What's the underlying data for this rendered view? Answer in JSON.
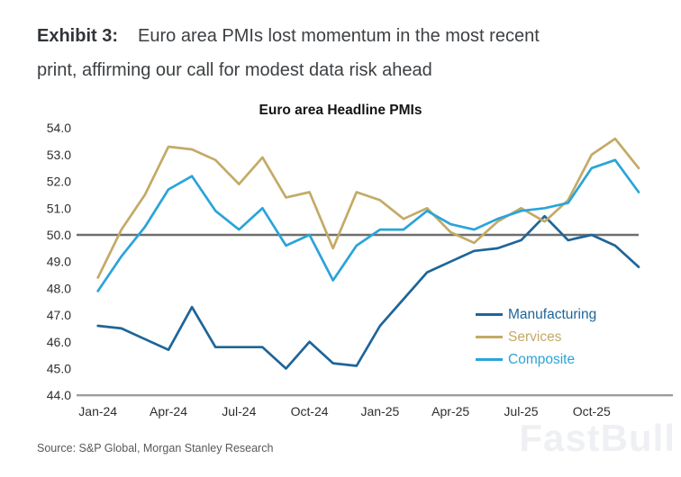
{
  "heading": {
    "exhibit_label": "Exhibit 3:",
    "line1": "Euro area PMIs lost momentum in the most recent",
    "line2": "print, affirming our call for modest data risk ahead"
  },
  "chart_data": {
    "type": "line",
    "title": "Euro area Headline PMIs",
    "xlabel": "",
    "ylabel": "",
    "ylim": [
      44.0,
      54.0
    ],
    "grid": false,
    "legend_position": "inside-right",
    "reference_line": {
      "value": 50.0,
      "color": "#6e6e6e"
    },
    "axis_color": "#9c9c9c",
    "tick_color": "#2e2e2e",
    "x": [
      "Jan-24",
      "Feb-24",
      "Mar-24",
      "Apr-24",
      "May-24",
      "Jun-24",
      "Jul-24",
      "Aug-24",
      "Sep-24",
      "Oct-24",
      "Nov-24",
      "Dec-24",
      "Jan-25",
      "Feb-25",
      "Mar-25",
      "Apr-25",
      "May-25",
      "Jun-25",
      "Jul-25",
      "Aug-25",
      "Sep-25",
      "Oct-25",
      "Nov-25",
      "Dec-25"
    ],
    "x_ticks": [
      {
        "index": 0,
        "label": "Jan-24"
      },
      {
        "index": 3,
        "label": "Apr-24"
      },
      {
        "index": 6,
        "label": "Jul-24"
      },
      {
        "index": 9,
        "label": "Oct-24"
      },
      {
        "index": 12,
        "label": "Jan-25"
      },
      {
        "index": 15,
        "label": "Apr-25"
      },
      {
        "index": 18,
        "label": "Jul-25"
      },
      {
        "index": 21,
        "label": "Oct-25"
      }
    ],
    "y_ticks": [
      {
        "value": 54,
        "label": "54.0"
      },
      {
        "value": 53,
        "label": "53.0"
      },
      {
        "value": 52,
        "label": "52.0"
      },
      {
        "value": 51,
        "label": "51.0"
      },
      {
        "value": 50,
        "label": "50.0"
      },
      {
        "value": 49,
        "label": "49.0"
      },
      {
        "value": 48,
        "label": "48.0"
      },
      {
        "value": 47,
        "label": "47.0"
      },
      {
        "value": 46,
        "label": "46.0"
      },
      {
        "value": 45,
        "label": "45.0"
      },
      {
        "value": 44,
        "label": "44.0"
      }
    ],
    "series": [
      {
        "name": "Manufacturing",
        "color": "#1E6598",
        "values": [
          46.6,
          46.5,
          46.1,
          45.7,
          47.3,
          45.8,
          45.8,
          45.8,
          45.0,
          46.0,
          45.2,
          45.1,
          46.6,
          47.6,
          48.6,
          49.0,
          49.4,
          49.5,
          49.8,
          50.7,
          49.8,
          50.0,
          49.6,
          48.8
        ]
      },
      {
        "name": "Services",
        "color": "#C3AA66",
        "values": [
          48.4,
          50.2,
          51.5,
          53.3,
          53.2,
          52.8,
          51.9,
          52.9,
          51.4,
          51.6,
          49.5,
          51.6,
          51.3,
          50.6,
          51.0,
          50.1,
          49.7,
          50.5,
          51.0,
          50.5,
          51.3,
          53.0,
          53.6,
          52.5
        ]
      },
      {
        "name": "Composite",
        "color": "#2AA4D9",
        "values": [
          47.9,
          49.2,
          50.3,
          51.7,
          52.2,
          50.9,
          50.2,
          51.0,
          49.6,
          50.0,
          48.3,
          49.6,
          50.2,
          50.2,
          50.9,
          50.4,
          50.2,
          50.6,
          50.9,
          51.0,
          51.2,
          52.5,
          52.8,
          51.6
        ]
      }
    ]
  },
  "source": {
    "text": "Source: S&P Global, Morgan Stanley Research"
  },
  "watermark": {
    "text": "FastBull"
  }
}
